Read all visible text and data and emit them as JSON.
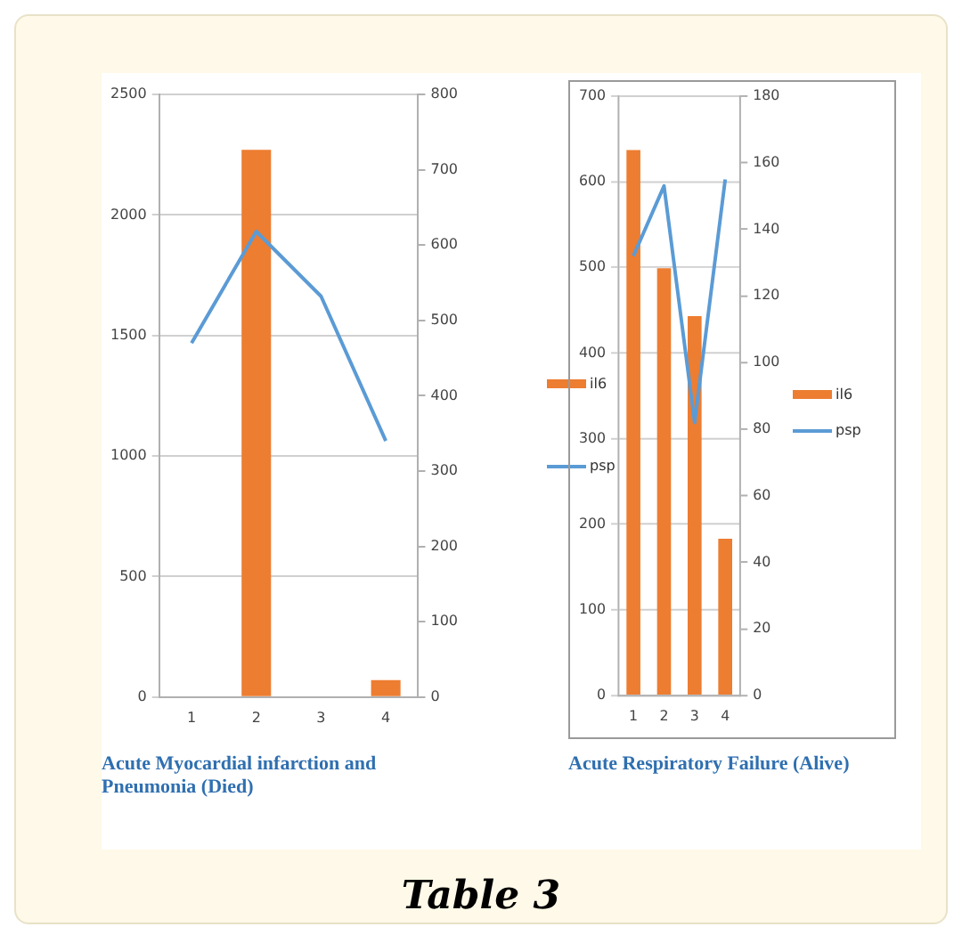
{
  "chart_data": [
    {
      "type": "bar",
      "categories": [
        "1",
        "2",
        "3",
        "4"
      ],
      "series": [
        {
          "name": "il6",
          "type": "bar",
          "color": "#ed7d31",
          "values": [
            0,
            2270,
            0,
            70
          ]
        },
        {
          "name": "psp",
          "type": "line",
          "axis": "y2",
          "color": "#5b9bd5",
          "values": [
            470,
            618,
            532,
            340
          ]
        }
      ],
      "ylim": [
        0,
        2500
      ],
      "yticks": [
        0,
        500,
        1000,
        1500,
        2000,
        2500
      ],
      "y2lim": [
        0,
        800
      ],
      "y2ticks": [
        0,
        100,
        200,
        300,
        400,
        500,
        600,
        700,
        800
      ],
      "grid": "y",
      "legend": "right",
      "marker": "none",
      "annotations": [
        "Acute Myocardial infarction and Pneumonia (Died)",
        "Table 3"
      ]
    },
    {
      "type": "bar",
      "categories": [
        "1",
        "2",
        "3",
        "4"
      ],
      "series": [
        {
          "name": "il6",
          "type": "bar",
          "color": "#ed7d31",
          "values": [
            637,
            499,
            443,
            183
          ]
        },
        {
          "name": "psp",
          "type": "line",
          "axis": "y2",
          "color": "#5b9bd5",
          "values": [
            132,
            153,
            82,
            155
          ]
        }
      ],
      "ylim": [
        0,
        700
      ],
      "yticks": [
        0,
        100,
        200,
        300,
        400,
        500,
        600,
        700
      ],
      "y2lim": [
        0,
        180
      ],
      "y2ticks": [
        0,
        20,
        40,
        60,
        80,
        100,
        120,
        140,
        160,
        180
      ],
      "grid": "y",
      "legend": "right",
      "marker": "none",
      "annotations": [
        "Acute Respiratory Failure (Alive)"
      ]
    }
  ]
}
